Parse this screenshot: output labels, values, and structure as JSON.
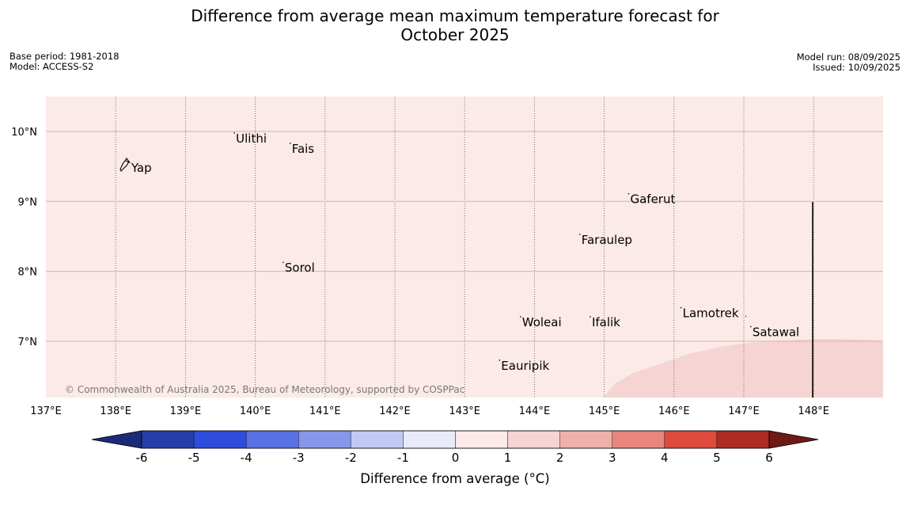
{
  "title_line1": "Difference from average mean maximum temperature forecast for",
  "title_line2": "October 2025",
  "meta_left": {
    "base_period": "Base period: 1981-2018",
    "model": "Model: ACCESS-S2"
  },
  "meta_right": {
    "model_run": "Model run: 08/09/2025",
    "issued": "Issued: 10/09/2025"
  },
  "copyright": "© Commonwealth of Australia 2025, Bureau of Meteorology, supported by COSPPac",
  "map": {
    "lon_labels": [
      "137°E",
      "138°E",
      "139°E",
      "140°E",
      "141°E",
      "142°E",
      "143°E",
      "144°E",
      "145°E",
      "146°E",
      "147°E",
      "148°E"
    ],
    "lat_labels": [
      "10°N",
      "9°N",
      "8°N",
      "7°N"
    ],
    "background_color": "#fbeae8",
    "warm_region_color": "#f5d4d3",
    "places": [
      {
        "name": "Yap",
        "lon": 138.2,
        "lat": 9.48
      },
      {
        "name": "Ulithi",
        "lon": 139.7,
        "lat": 9.9
      },
      {
        "name": "Fais",
        "lon": 140.5,
        "lat": 9.75
      },
      {
        "name": "Gaferut",
        "lon": 145.35,
        "lat": 9.03
      },
      {
        "name": "Faraulep",
        "lon": 144.65,
        "lat": 8.45
      },
      {
        "name": "Sorol",
        "lon": 140.4,
        "lat": 8.05
      },
      {
        "name": "Woleai",
        "lon": 143.8,
        "lat": 7.27
      },
      {
        "name": "Ifalik",
        "lon": 144.8,
        "lat": 7.27
      },
      {
        "name": "Lamotrek",
        "lon": 146.1,
        "lat": 7.4
      },
      {
        "name": "Satawal",
        "lon": 147.1,
        "lat": 7.13
      },
      {
        "name": "Eauripik",
        "lon": 143.5,
        "lat": 6.65
      }
    ]
  },
  "colorbar": {
    "label": "Difference from average (°C)",
    "ticks": [
      "-6",
      "-5",
      "-4",
      "-3",
      "-2",
      "-1",
      "0",
      "1",
      "2",
      "3",
      "4",
      "5",
      "6"
    ],
    "colors": [
      "#263fa8",
      "#2f4ddc",
      "#5872e4",
      "#8596eb",
      "#c2c9f5",
      "#e9ebfb",
      "#fde9e9",
      "#f5d4d3",
      "#efb0aa",
      "#e8857c",
      "#dd4a3e",
      "#ad2b23"
    ],
    "under_color": "#1c2b78",
    "over_color": "#6e1a17"
  }
}
